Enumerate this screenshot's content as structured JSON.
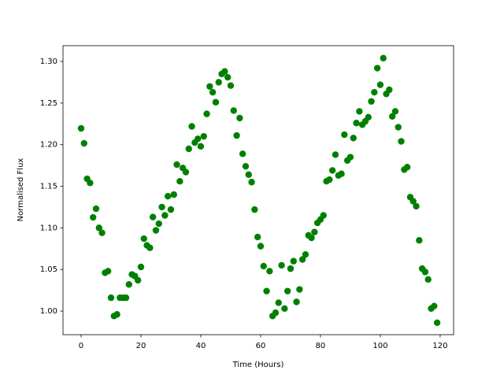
{
  "chart_data": {
    "type": "scatter",
    "x_label": "Time (Hours)",
    "y_label": "Normalised Flux",
    "x": [
      0,
      1,
      2,
      3,
      4,
      5,
      6,
      7,
      8,
      9,
      10,
      11,
      12,
      13,
      14,
      15,
      16,
      17,
      18,
      19,
      20,
      21,
      22,
      23,
      24,
      25,
      26,
      27,
      28,
      29,
      30,
      31,
      32,
      33,
      34,
      35,
      36,
      37,
      38,
      39,
      40,
      41,
      42,
      43,
      44,
      45,
      46,
      47,
      48,
      49,
      50,
      51,
      52,
      53,
      54,
      55,
      56,
      57,
      58,
      59,
      60,
      61,
      62,
      63,
      64,
      65,
      66,
      67,
      68,
      69,
      70,
      71,
      72,
      73,
      74,
      75,
      76,
      77,
      78,
      79,
      80,
      81,
      82,
      83,
      84,
      85,
      86,
      87,
      88,
      89,
      90,
      91,
      92,
      93,
      94,
      95,
      96,
      97,
      98,
      99,
      100,
      101,
      102,
      103,
      104,
      105,
      106,
      107,
      108,
      109,
      110,
      111,
      112,
      113,
      114,
      115,
      116,
      117,
      118,
      119
    ],
    "series": [
      {
        "color": "#008000",
        "values": [
          1.2196,
          1.2016,
          1.159,
          1.154,
          1.1126,
          1.123,
          1.1,
          1.094,
          1.046,
          1.048,
          1.016,
          0.994,
          0.996,
          1.016,
          1.016,
          1.016,
          1.032,
          1.044,
          1.042,
          1.037,
          1.053,
          1.087,
          1.079,
          1.076,
          1.113,
          1.097,
          1.105,
          1.125,
          1.115,
          1.138,
          1.122,
          1.14,
          1.176,
          1.156,
          1.172,
          1.167,
          1.195,
          1.222,
          1.2025,
          1.207,
          1.198,
          1.21,
          1.237,
          1.27,
          1.263,
          1.251,
          1.275,
          1.285,
          1.288,
          1.281,
          1.271,
          1.241,
          1.211,
          1.232,
          1.189,
          1.174,
          1.164,
          1.155,
          1.122,
          1.089,
          1.078,
          1.054,
          1.024,
          1.048,
          0.994,
          0.998,
          1.01,
          1.055,
          1.003,
          1.024,
          1.051,
          1.06,
          1.011,
          1.026,
          1.062,
          1.068,
          1.091,
          1.088,
          1.095,
          1.106,
          1.11,
          1.115,
          1.156,
          1.158,
          1.169,
          1.188,
          1.163,
          1.165,
          1.212,
          1.181,
          1.185,
          1.208,
          1.226,
          1.24,
          1.224,
          1.228,
          1.233,
          1.252,
          1.263,
          1.292,
          1.272,
          1.304,
          1.261,
          1.266,
          1.234,
          1.24,
          1.221,
          1.204,
          1.17,
          1.173,
          1.137,
          1.132,
          1.126,
          1.085,
          1.051,
          1.047,
          1.038,
          1.003,
          1.006,
          0.986
        ]
      }
    ],
    "xlim": [
      -6.05,
      124.5
    ],
    "ylim": [
      0.9716,
      1.319
    ],
    "xticks": [
      0,
      20,
      40,
      60,
      80,
      100,
      120
    ],
    "yticks": [
      {
        "value": 1.0,
        "label": "1.00"
      },
      {
        "value": 1.05,
        "label": "1.05"
      },
      {
        "value": 1.1,
        "label": "1.10"
      },
      {
        "value": 1.15,
        "label": "1.15"
      },
      {
        "value": 1.2,
        "label": "1.20"
      },
      {
        "value": 1.25,
        "label": "1.25"
      },
      {
        "value": 1.3,
        "label": "1.30"
      }
    ]
  }
}
